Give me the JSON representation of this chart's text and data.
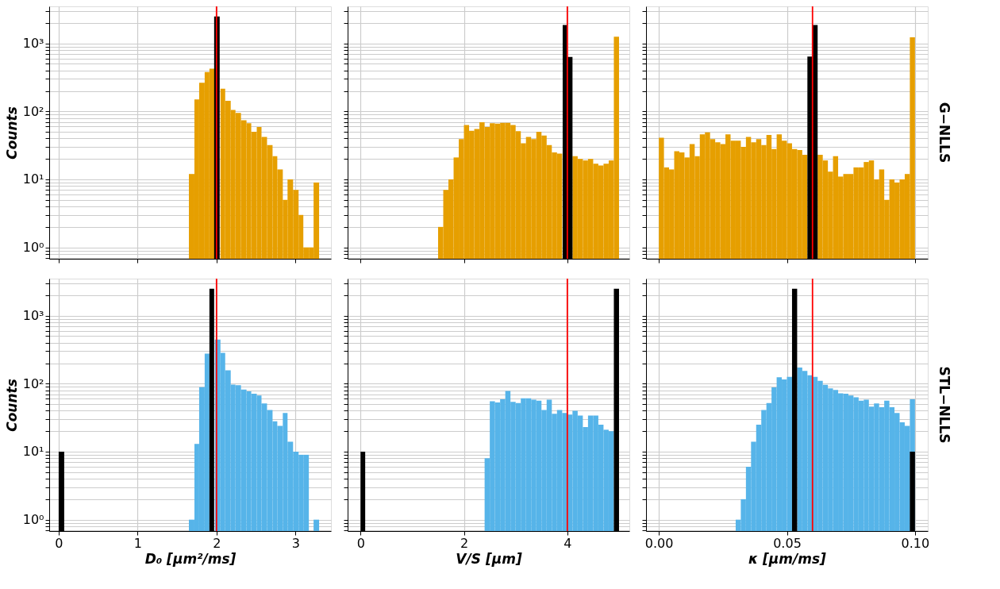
{
  "chart_data": [
    {
      "type": "histogram",
      "ylabel": "Counts",
      "log": true,
      "grid": true,
      "tick_labels": "y",
      "xlim": [
        -0.12,
        3.45
      ],
      "xticks": [
        0,
        1,
        2,
        3
      ],
      "ylim": [
        0.68,
        3500
      ],
      "yticks": [
        {
          "value": 0.7,
          "label": null
        },
        {
          "value": 0.8,
          "label": null
        },
        {
          "value": 0.9,
          "label": null
        },
        {
          "value": 1,
          "label": "10⁰"
        },
        {
          "value": 2,
          "label": null
        },
        {
          "value": 3,
          "label": null
        },
        {
          "value": 4,
          "label": null
        },
        {
          "value": 5,
          "label": null
        },
        {
          "value": 6,
          "label": null
        },
        {
          "value": 7,
          "label": null
        },
        {
          "value": 8,
          "label": null
        },
        {
          "value": 9,
          "label": null
        },
        {
          "value": 10,
          "label": "10¹"
        },
        {
          "value": 20,
          "label": null
        },
        {
          "value": 30,
          "label": null
        },
        {
          "value": 40,
          "label": null
        },
        {
          "value": 50,
          "label": null
        },
        {
          "value": 60,
          "label": null
        },
        {
          "value": 70,
          "label": null
        },
        {
          "value": 80,
          "label": null
        },
        {
          "value": 90,
          "label": null
        },
        {
          "value": 100,
          "label": "10²"
        },
        {
          "value": 200,
          "label": null
        },
        {
          "value": 300,
          "label": null
        },
        {
          "value": 400,
          "label": null
        },
        {
          "value": 500,
          "label": null
        },
        {
          "value": 600,
          "label": null
        },
        {
          "value": 700,
          "label": null
        },
        {
          "value": 800,
          "label": null
        },
        {
          "value": 900,
          "label": null
        },
        {
          "value": 1000,
          "label": "10³"
        },
        {
          "value": 2000,
          "label": null
        },
        {
          "value": 3000,
          "label": null
        }
      ],
      "color": "#e69f00",
      "bins": [
        1.65,
        1.72,
        1.78,
        1.85,
        1.91,
        1.98,
        2.05,
        2.11,
        2.18,
        2.24,
        2.31,
        2.38,
        2.44,
        2.51,
        2.57,
        2.64,
        2.71,
        2.77,
        2.84,
        2.9,
        2.97,
        3.04,
        3.1,
        3.17,
        3.23,
        3.3
      ],
      "values": [
        12,
        150,
        263,
        378,
        424,
        null,
        216,
        143,
        105,
        95,
        74,
        67,
        50,
        59,
        42,
        32,
        22,
        14,
        5,
        10,
        7,
        3,
        1,
        1,
        9
      ],
      "series": [
        {
          "color": "#000000",
          "bins": [
            1.97,
            2.04
          ],
          "values": [
            2490
          ]
        }
      ],
      "ref_lines": [
        {
          "axis": "x",
          "value": 2,
          "color": "#ff0000"
        }
      ]
    },
    {
      "type": "histogram",
      "log": true,
      "grid": true,
      "tick_labels": false,
      "xlim": [
        -0.25,
        5.2
      ],
      "xticks": [
        0,
        2,
        4
      ],
      "ylim": [
        0.68,
        3500
      ],
      "yticks": [
        {
          "value": 0.7,
          "label": null
        },
        {
          "value": 0.8,
          "label": null
        },
        {
          "value": 0.9,
          "label": null
        },
        {
          "value": 1,
          "label": null
        },
        {
          "value": 2,
          "label": null
        },
        {
          "value": 3,
          "label": null
        },
        {
          "value": 4,
          "label": null
        },
        {
          "value": 5,
          "label": null
        },
        {
          "value": 6,
          "label": null
        },
        {
          "value": 7,
          "label": null
        },
        {
          "value": 8,
          "label": null
        },
        {
          "value": 9,
          "label": null
        },
        {
          "value": 10,
          "label": null
        },
        {
          "value": 20,
          "label": null
        },
        {
          "value": 30,
          "label": null
        },
        {
          "value": 40,
          "label": null
        },
        {
          "value": 50,
          "label": null
        },
        {
          "value": 60,
          "label": null
        },
        {
          "value": 70,
          "label": null
        },
        {
          "value": 80,
          "label": null
        },
        {
          "value": 90,
          "label": null
        },
        {
          "value": 100,
          "label": null
        },
        {
          "value": 200,
          "label": null
        },
        {
          "value": 300,
          "label": null
        },
        {
          "value": 400,
          "label": null
        },
        {
          "value": 500,
          "label": null
        },
        {
          "value": 600,
          "label": null
        },
        {
          "value": 700,
          "label": null
        },
        {
          "value": 800,
          "label": null
        },
        {
          "value": 900,
          "label": null
        },
        {
          "value": 1000,
          "label": null
        },
        {
          "value": 2000,
          "label": null
        },
        {
          "value": 3000,
          "label": null
        }
      ],
      "color": "#e69f00",
      "bins": [
        1.5,
        1.6,
        1.7,
        1.8,
        1.9,
        2.0,
        2.1,
        2.2,
        2.3,
        2.4,
        2.5,
        2.6,
        2.7,
        2.8,
        2.9,
        3.0,
        3.1,
        3.2,
        3.3,
        3.4,
        3.5,
        3.6,
        3.7,
        3.8,
        3.9,
        4.0,
        4.1,
        4.2,
        4.3,
        4.4,
        4.5,
        4.6,
        4.7,
        4.8,
        4.9,
        5.0
      ],
      "values": [
        2,
        7,
        10,
        21,
        39,
        63,
        52,
        55,
        69,
        59,
        67,
        66,
        68,
        68,
        63,
        51,
        34,
        42,
        39,
        50,
        44,
        32,
        25,
        24,
        null,
        null,
        22,
        20,
        19,
        20,
        17,
        16,
        17,
        19,
        1250
      ],
      "series": [
        {
          "color": "#000000",
          "bins": [
            3.91,
            4.0,
            4.1
          ],
          "values": [
            1860,
            630
          ]
        }
      ],
      "ref_lines": [
        {
          "axis": "x",
          "value": 4,
          "color": "#ff0000"
        }
      ]
    },
    {
      "type": "histogram",
      "log": true,
      "grid": true,
      "tick_labels": false,
      "annotations": [
        "G−NLLS"
      ],
      "xlim": [
        -0.005,
        0.105
      ],
      "xticks": [
        {
          "value": 0,
          "label": null
        },
        {
          "value": 0.05,
          "label": null
        },
        {
          "value": 0.1,
          "label": null
        }
      ],
      "ylim": [
        0.68,
        3500
      ],
      "yticks": [
        {
          "value": 0.7,
          "label": null
        },
        {
          "value": 0.8,
          "label": null
        },
        {
          "value": 0.9,
          "label": null
        },
        {
          "value": 1,
          "label": null
        },
        {
          "value": 2,
          "label": null
        },
        {
          "value": 3,
          "label": null
        },
        {
          "value": 4,
          "label": null
        },
        {
          "value": 5,
          "label": null
        },
        {
          "value": 6,
          "label": null
        },
        {
          "value": 7,
          "label": null
        },
        {
          "value": 8,
          "label": null
        },
        {
          "value": 9,
          "label": null
        },
        {
          "value": 10,
          "label": null
        },
        {
          "value": 20,
          "label": null
        },
        {
          "value": 30,
          "label": null
        },
        {
          "value": 40,
          "label": null
        },
        {
          "value": 50,
          "label": null
        },
        {
          "value": 60,
          "label": null
        },
        {
          "value": 70,
          "label": null
        },
        {
          "value": 80,
          "label": null
        },
        {
          "value": 90,
          "label": null
        },
        {
          "value": 100,
          "label": null
        },
        {
          "value": 200,
          "label": null
        },
        {
          "value": 300,
          "label": null
        },
        {
          "value": 400,
          "label": null
        },
        {
          "value": 500,
          "label": null
        },
        {
          "value": 600,
          "label": null
        },
        {
          "value": 700,
          "label": null
        },
        {
          "value": 800,
          "label": null
        },
        {
          "value": 900,
          "label": null
        },
        {
          "value": 1000,
          "label": null
        },
        {
          "value": 2000,
          "label": null
        },
        {
          "value": 3000,
          "label": null
        }
      ],
      "color": "#e69f00",
      "bins": [
        0,
        0.002,
        0.004,
        0.006,
        0.008,
        0.01,
        0.012,
        0.014,
        0.016,
        0.018,
        0.02,
        0.022,
        0.024,
        0.026,
        0.028,
        0.03,
        0.032,
        0.034,
        0.036,
        0.038,
        0.04,
        0.042,
        0.044,
        0.046,
        0.048,
        0.05,
        0.052,
        0.054,
        0.056,
        0.058,
        0.06,
        0.062,
        0.064,
        0.066,
        0.068,
        0.07,
        0.072,
        0.074,
        0.076,
        0.078,
        0.08,
        0.082,
        0.084,
        0.086,
        0.088,
        0.09,
        0.092,
        0.094,
        0.096,
        0.098,
        0.1
      ],
      "values": [
        41,
        15,
        14,
        26,
        25,
        21,
        33,
        22,
        46,
        49,
        39,
        35,
        33,
        46,
        37,
        37,
        30,
        42,
        35,
        39,
        32,
        45,
        28,
        46,
        37,
        34,
        28,
        27,
        23,
        null,
        null,
        23,
        19,
        13,
        22,
        11,
        12,
        12,
        15,
        15,
        18,
        19,
        10,
        14,
        5,
        10,
        9,
        10,
        12,
        1225
      ],
      "series": [
        {
          "color": "#000000",
          "bins": [
            0.058,
            0.06,
            0.062
          ],
          "values": [
            640,
            1860
          ]
        }
      ],
      "ref_lines": [
        {
          "axis": "x",
          "value": 0.06,
          "color": "#ff0000"
        }
      ]
    },
    {
      "type": "histogram",
      "xlabel": "D₀ [μm²/ms]",
      "ylabel": "Counts",
      "log": true,
      "grid": true,
      "xlim": [
        -0.12,
        3.45
      ],
      "xticks": [
        0,
        1,
        2,
        3
      ],
      "ylim": [
        0.68,
        3500
      ],
      "yticks": [
        {
          "value": 0.7,
          "label": null
        },
        {
          "value": 0.8,
          "label": null
        },
        {
          "value": 0.9,
          "label": null
        },
        {
          "value": 1,
          "label": "10⁰"
        },
        {
          "value": 2,
          "label": null
        },
        {
          "value": 3,
          "label": null
        },
        {
          "value": 4,
          "label": null
        },
        {
          "value": 5,
          "label": null
        },
        {
          "value": 6,
          "label": null
        },
        {
          "value": 7,
          "label": null
        },
        {
          "value": 8,
          "label": null
        },
        {
          "value": 9,
          "label": null
        },
        {
          "value": 10,
          "label": "10¹"
        },
        {
          "value": 20,
          "label": null
        },
        {
          "value": 30,
          "label": null
        },
        {
          "value": 40,
          "label": null
        },
        {
          "value": 50,
          "label": null
        },
        {
          "value": 60,
          "label": null
        },
        {
          "value": 70,
          "label": null
        },
        {
          "value": 80,
          "label": null
        },
        {
          "value": 90,
          "label": null
        },
        {
          "value": 100,
          "label": "10²"
        },
        {
          "value": 200,
          "label": null
        },
        {
          "value": 300,
          "label": null
        },
        {
          "value": 400,
          "label": null
        },
        {
          "value": 500,
          "label": null
        },
        {
          "value": 600,
          "label": null
        },
        {
          "value": 700,
          "label": null
        },
        {
          "value": 800,
          "label": null
        },
        {
          "value": 900,
          "label": null
        },
        {
          "value": 1000,
          "label": "10³"
        },
        {
          "value": 2000,
          "label": null
        },
        {
          "value": 3000,
          "label": null
        }
      ],
      "color": "#56b4e9",
      "bins": [
        1.65,
        1.72,
        1.78,
        1.85,
        1.91,
        1.98,
        2.05,
        2.11,
        2.18,
        2.24,
        2.31,
        2.38,
        2.44,
        2.51,
        2.57,
        2.64,
        2.71,
        2.77,
        2.84,
        2.9,
        2.97,
        3.04,
        3.1,
        3.17,
        3.23,
        3.3
      ],
      "values": [
        1,
        13,
        89,
        277,
        null,
        446,
        284,
        157,
        97,
        95,
        82,
        77,
        71,
        67,
        51,
        41,
        28,
        24,
        37,
        14,
        10,
        9,
        9,
        null,
        1
      ],
      "series": [
        {
          "color": "#000000",
          "bins": [
            0.0,
            0.07,
            1.91,
            1.97
          ],
          "values": [
            10,
            null,
            2490
          ]
        }
      ],
      "ref_lines": [
        {
          "axis": "x",
          "value": 2,
          "color": "#ff0000"
        }
      ]
    },
    {
      "type": "histogram",
      "xlabel": "V/S [μm]",
      "log": true,
      "grid": true,
      "tick_labels": "x",
      "xlim": [
        -0.25,
        5.2
      ],
      "xticks": [
        0,
        2,
        4
      ],
      "ylim": [
        0.68,
        3500
      ],
      "yticks": [
        {
          "value": 0.7,
          "label": null
        },
        {
          "value": 0.8,
          "label": null
        },
        {
          "value": 0.9,
          "label": null
        },
        {
          "value": 1,
          "label": null
        },
        {
          "value": 2,
          "label": null
        },
        {
          "value": 3,
          "label": null
        },
        {
          "value": 4,
          "label": null
        },
        {
          "value": 5,
          "label": null
        },
        {
          "value": 6,
          "label": null
        },
        {
          "value": 7,
          "label": null
        },
        {
          "value": 8,
          "label": null
        },
        {
          "value": 9,
          "label": null
        },
        {
          "value": 10,
          "label": null
        },
        {
          "value": 20,
          "label": null
        },
        {
          "value": 30,
          "label": null
        },
        {
          "value": 40,
          "label": null
        },
        {
          "value": 50,
          "label": null
        },
        {
          "value": 60,
          "label": null
        },
        {
          "value": 70,
          "label": null
        },
        {
          "value": 80,
          "label": null
        },
        {
          "value": 90,
          "label": null
        },
        {
          "value": 100,
          "label": null
        },
        {
          "value": 200,
          "label": null
        },
        {
          "value": 300,
          "label": null
        },
        {
          "value": 400,
          "label": null
        },
        {
          "value": 500,
          "label": null
        },
        {
          "value": 600,
          "label": null
        },
        {
          "value": 700,
          "label": null
        },
        {
          "value": 800,
          "label": null
        },
        {
          "value": 900,
          "label": null
        },
        {
          "value": 1000,
          "label": null
        },
        {
          "value": 2000,
          "label": null
        },
        {
          "value": 3000,
          "label": null
        }
      ],
      "color": "#56b4e9",
      "bins": [
        2.4,
        2.5,
        2.6,
        2.7,
        2.8,
        2.9,
        3.0,
        3.1,
        3.2,
        3.3,
        3.4,
        3.5,
        3.6,
        3.7,
        3.8,
        3.9,
        4.0,
        4.1,
        4.2,
        4.3,
        4.4,
        4.5,
        4.6,
        4.7,
        4.8,
        4.9
      ],
      "values": [
        8,
        55,
        53,
        59,
        78,
        54,
        52,
        61,
        61,
        58,
        56,
        41,
        58,
        36,
        41,
        37,
        35,
        40,
        34,
        23,
        34,
        34,
        25,
        21,
        20
      ],
      "series": [
        {
          "color": "#000000",
          "bins": [
            0.0,
            0.09,
            4.9,
            5.0
          ],
          "values": [
            10,
            null,
            2490
          ]
        }
      ],
      "ref_lines": [
        {
          "axis": "x",
          "value": 4,
          "color": "#ff0000"
        }
      ]
    },
    {
      "type": "histogram",
      "xlabel": "κ [μm/ms]",
      "log": true,
      "grid": true,
      "tick_labels": "x",
      "annotations": [
        "STL−NLLS"
      ],
      "xlim": [
        -0.005,
        0.105
      ],
      "xticks": [
        {
          "value": 0,
          "label": "0.00"
        },
        {
          "value": 0.05,
          "label": "0.05"
        },
        {
          "value": 0.1,
          "label": "0.10"
        }
      ],
      "ylim": [
        0.68,
        3500
      ],
      "yticks": [
        {
          "value": 0.7,
          "label": null
        },
        {
          "value": 0.8,
          "label": null
        },
        {
          "value": 0.9,
          "label": null
        },
        {
          "value": 1,
          "label": null
        },
        {
          "value": 2,
          "label": null
        },
        {
          "value": 3,
          "label": null
        },
        {
          "value": 4,
          "label": null
        },
        {
          "value": 5,
          "label": null
        },
        {
          "value": 6,
          "label": null
        },
        {
          "value": 7,
          "label": null
        },
        {
          "value": 8,
          "label": null
        },
        {
          "value": 9,
          "label": null
        },
        {
          "value": 10,
          "label": null
        },
        {
          "value": 20,
          "label": null
        },
        {
          "value": 30,
          "label": null
        },
        {
          "value": 40,
          "label": null
        },
        {
          "value": 50,
          "label": null
        },
        {
          "value": 60,
          "label": null
        },
        {
          "value": 70,
          "label": null
        },
        {
          "value": 80,
          "label": null
        },
        {
          "value": 90,
          "label": null
        },
        {
          "value": 100,
          "label": null
        },
        {
          "value": 200,
          "label": null
        },
        {
          "value": 300,
          "label": null
        },
        {
          "value": 400,
          "label": null
        },
        {
          "value": 500,
          "label": null
        },
        {
          "value": 600,
          "label": null
        },
        {
          "value": 700,
          "label": null
        },
        {
          "value": 800,
          "label": null
        },
        {
          "value": 900,
          "label": null
        },
        {
          "value": 1000,
          "label": null
        },
        {
          "value": 2000,
          "label": null
        },
        {
          "value": 3000,
          "label": null
        }
      ],
      "color": "#56b4e9",
      "bins": [
        0.03,
        0.032,
        0.034,
        0.036,
        0.038,
        0.04,
        0.042,
        0.044,
        0.046,
        0.048,
        0.05,
        0.052,
        0.054,
        0.056,
        0.058,
        0.06,
        0.062,
        0.064,
        0.066,
        0.068,
        0.07,
        0.072,
        0.074,
        0.076,
        0.078,
        0.08,
        0.082,
        0.084,
        0.086,
        0.088,
        0.09,
        0.092,
        0.094,
        0.096,
        0.098,
        0.1
      ],
      "values": [
        1,
        2,
        6,
        14,
        25,
        41,
        52,
        88,
        124,
        115,
        126,
        null,
        172,
        154,
        133,
        126,
        110,
        96,
        85,
        81,
        72,
        71,
        67,
        63,
        56,
        58,
        46,
        51,
        45,
        56,
        45,
        37,
        27,
        24,
        59
      ],
      "series": [
        {
          "color": "#000000",
          "bins": [
            0.052,
            0.054,
            0.098,
            0.1
          ],
          "values": [
            2490,
            null,
            10
          ]
        }
      ],
      "ref_lines": [
        {
          "axis": "x",
          "value": 0.06,
          "color": "#ff0000"
        }
      ]
    }
  ]
}
